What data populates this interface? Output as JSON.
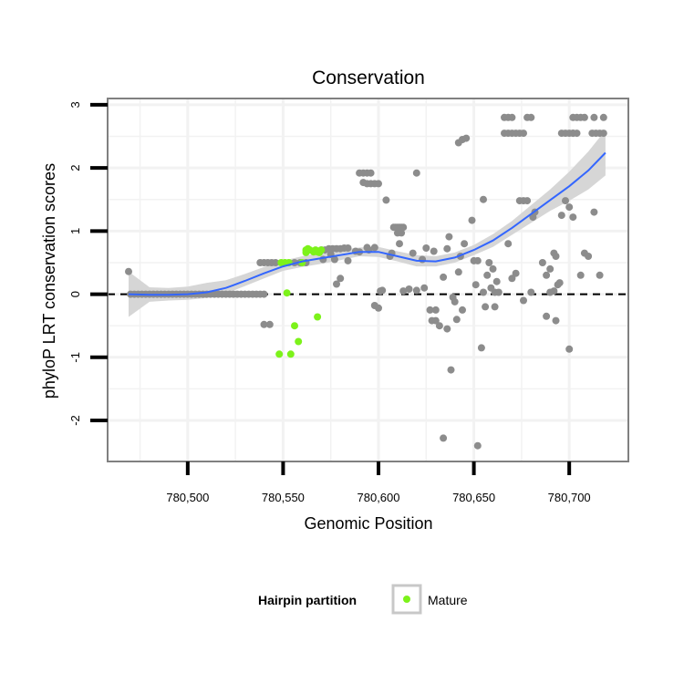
{
  "chart_data": {
    "type": "scatter",
    "title": "Conservation",
    "xlabel": "Genomic Position",
    "ylabel": "phyloP LRT conservation scores",
    "xlim": [
      780458,
      780731
    ],
    "ylim": [
      -2.65,
      3.1
    ],
    "x_ticks": [
      780500,
      780550,
      780600,
      780650,
      780700
    ],
    "x_tick_labels": [
      "780,500",
      "780,550",
      "780,600",
      "780,650",
      "780,700"
    ],
    "y_ticks": [
      -2,
      -1,
      0,
      1,
      2,
      3
    ],
    "y_tick_labels": [
      "-2",
      "-1",
      "0",
      "1",
      "2",
      "3"
    ],
    "grid": true,
    "reference_line": {
      "y": 0,
      "style": "dashed"
    },
    "legend": {
      "title": "Hairpin partition",
      "position": "bottom",
      "entries": [
        {
          "label": "Mature",
          "color": "#7cf21a"
        }
      ]
    },
    "colors": {
      "other": "#8c8c8c",
      "mature": "#7cf21a",
      "smooth": "#3366ff",
      "band": "#d4d4d4",
      "panel_border": "#808080",
      "grid": "#f2f2f2"
    },
    "series": [
      {
        "name": "",
        "color": "#8c8c8c",
        "points": [
          [
            780469,
            0.36
          ],
          [
            780470,
            0
          ],
          [
            780472,
            0
          ],
          [
            780474,
            0
          ],
          [
            780476,
            0
          ],
          [
            780478,
            0
          ],
          [
            780480,
            0
          ],
          [
            780482,
            0
          ],
          [
            780484,
            0
          ],
          [
            780486,
            0
          ],
          [
            780488,
            0
          ],
          [
            780490,
            0
          ],
          [
            780492,
            0
          ],
          [
            780494,
            0
          ],
          [
            780496,
            0
          ],
          [
            780498,
            0
          ],
          [
            780500,
            0
          ],
          [
            780502,
            0
          ],
          [
            780504,
            0
          ],
          [
            780506,
            0
          ],
          [
            780508,
            0
          ],
          [
            780510,
            0
          ],
          [
            780512,
            0
          ],
          [
            780514,
            0
          ],
          [
            780516,
            0
          ],
          [
            780518,
            0
          ],
          [
            780520,
            0
          ],
          [
            780522,
            0
          ],
          [
            780524,
            0
          ],
          [
            780526,
            0
          ],
          [
            780528,
            0
          ],
          [
            780530,
            0
          ],
          [
            780532,
            0
          ],
          [
            780534,
            0
          ],
          [
            780536,
            0
          ],
          [
            780538,
            0
          ],
          [
            780540,
            0
          ],
          [
            780538,
            0.5
          ],
          [
            780540,
            0.5
          ],
          [
            780542,
            0.5
          ],
          [
            780544,
            0.5
          ],
          [
            780546,
            0.5
          ],
          [
            780540,
            -0.48
          ],
          [
            780543,
            -0.48
          ],
          [
            780556,
            0.5
          ],
          [
            780559,
            0.5
          ],
          [
            780562,
            0.5
          ],
          [
            780570,
            0.7
          ],
          [
            780572,
            0.7
          ],
          [
            780574,
            0.72
          ],
          [
            780576,
            0.72
          ],
          [
            780578,
            0.72
          ],
          [
            780580,
            0.72
          ],
          [
            780582,
            0.73
          ],
          [
            780584,
            0.73
          ],
          [
            780571,
            0.55
          ],
          [
            780575,
            0.63
          ],
          [
            780577,
            0.55
          ],
          [
            780580,
            0.25
          ],
          [
            780578,
            0.16
          ],
          [
            780584,
            0.53
          ],
          [
            780590,
            1.92
          ],
          [
            780592,
            1.92
          ],
          [
            780594,
            1.92
          ],
          [
            780596,
            1.92
          ],
          [
            780592,
            1.77
          ],
          [
            780594,
            1.75
          ],
          [
            780596,
            1.75
          ],
          [
            780598,
            1.75
          ],
          [
            780600,
            1.75
          ],
          [
            780588,
            0.68
          ],
          [
            780590,
            0.67
          ],
          [
            780594,
            0.74
          ],
          [
            780595,
            0.7
          ],
          [
            780598,
            0.74
          ],
          [
            780598,
            -0.18
          ],
          [
            780600,
            -0.22
          ],
          [
            780601,
            0.05
          ],
          [
            780602,
            0.06
          ],
          [
            780604,
            1.49
          ],
          [
            780606,
            0.6
          ],
          [
            780607,
            0.65
          ],
          [
            780608,
            1.06
          ],
          [
            780609,
            1.06
          ],
          [
            780610,
            1.06
          ],
          [
            780611,
            1.06
          ],
          [
            780612,
            1.06
          ],
          [
            780613,
            1.06
          ],
          [
            780610,
            0.97
          ],
          [
            780612,
            0.97
          ],
          [
            780611,
            0.8
          ],
          [
            780613,
            0.05
          ],
          [
            780616,
            0.08
          ],
          [
            780618,
            0.65
          ],
          [
            780620,
            1.92
          ],
          [
            780620,
            0.06
          ],
          [
            780623,
            0.55
          ],
          [
            780625,
            0.73
          ],
          [
            780624,
            0.1
          ],
          [
            780627,
            -0.25
          ],
          [
            780628,
            -0.42
          ],
          [
            780629,
            0.68
          ],
          [
            780630,
            -0.25
          ],
          [
            780630,
            -0.42
          ],
          [
            780632,
            -0.5
          ],
          [
            780634,
            0.27
          ],
          [
            780634,
            -2.28
          ],
          [
            780636,
            0.72
          ],
          [
            780636,
            -0.55
          ],
          [
            780637,
            0.91
          ],
          [
            780638,
            -1.2
          ],
          [
            780639,
            -0.05
          ],
          [
            780640,
            -0.12
          ],
          [
            780641,
            -0.4
          ],
          [
            780642,
            0.35
          ],
          [
            780642,
            2.4
          ],
          [
            780644,
            2.45
          ],
          [
            780646,
            2.47
          ],
          [
            780643,
            0.6
          ],
          [
            780644,
            -0.25
          ],
          [
            780645,
            0.8
          ],
          [
            780649,
            1.17
          ],
          [
            780650,
            0.53
          ],
          [
            780651,
            0.15
          ],
          [
            780652,
            0.53
          ],
          [
            780652,
            -2.4
          ],
          [
            780654,
            -0.85
          ],
          [
            780655,
            1.5
          ],
          [
            780655,
            0.03
          ],
          [
            780656,
            -0.2
          ],
          [
            780657,
            0.3
          ],
          [
            780658,
            0.5
          ],
          [
            780659,
            0.1
          ],
          [
            780660,
            0.4
          ],
          [
            780661,
            0.03
          ],
          [
            780661,
            -0.2
          ],
          [
            780662,
            0.2
          ],
          [
            780663,
            0.03
          ],
          [
            780666,
            2.8
          ],
          [
            780668,
            2.8
          ],
          [
            780670,
            2.8
          ],
          [
            780666,
            2.55
          ],
          [
            780668,
            2.55
          ],
          [
            780670,
            2.55
          ],
          [
            780672,
            2.55
          ],
          [
            780674,
            2.55
          ],
          [
            780676,
            2.55
          ],
          [
            780668,
            0.8
          ],
          [
            780670,
            0.25
          ],
          [
            780672,
            0.33
          ],
          [
            780674,
            1.48
          ],
          [
            780676,
            1.48
          ],
          [
            780678,
            1.48
          ],
          [
            780676,
            -0.1
          ],
          [
            780678,
            2.8
          ],
          [
            780680,
            2.8
          ],
          [
            780680,
            0.03
          ],
          [
            780681,
            1.22
          ],
          [
            780682,
            1.3
          ],
          [
            780686,
            0.5
          ],
          [
            780688,
            -0.35
          ],
          [
            780688,
            0.3
          ],
          [
            780690,
            0.4
          ],
          [
            780690,
            0.03
          ],
          [
            780692,
            0.05
          ],
          [
            780692,
            0.65
          ],
          [
            780693,
            0.6
          ],
          [
            780693,
            -0.42
          ],
          [
            780694,
            0.15
          ],
          [
            780695,
            0.18
          ],
          [
            780696,
            2.55
          ],
          [
            780698,
            2.55
          ],
          [
            780700,
            2.55
          ],
          [
            780702,
            2.55
          ],
          [
            780704,
            2.55
          ],
          [
            780696,
            1.25
          ],
          [
            780698,
            1.48
          ],
          [
            780700,
            1.38
          ],
          [
            780700,
            -0.87
          ],
          [
            780702,
            2.55
          ],
          [
            780702,
            1.22
          ],
          [
            780702,
            2.8
          ],
          [
            780704,
            2.8
          ],
          [
            780706,
            2.8
          ],
          [
            780708,
            2.8
          ],
          [
            780706,
            0.3
          ],
          [
            780708,
            0.65
          ],
          [
            780710,
            0.6
          ],
          [
            780712,
            2.55
          ],
          [
            780714,
            2.55
          ],
          [
            780716,
            2.55
          ],
          [
            780718,
            2.55
          ],
          [
            780713,
            2.8
          ],
          [
            780713,
            1.3
          ],
          [
            780716,
            0.3
          ],
          [
            780718,
            2.8
          ]
        ]
      },
      {
        "name": "Mature",
        "color": "#7cf21a",
        "points": [
          [
            780548,
            -0.95
          ],
          [
            780549,
            0.5
          ],
          [
            780551,
            0.5
          ],
          [
            780552,
            0.02
          ],
          [
            780553,
            0.5
          ],
          [
            780554,
            -0.95
          ],
          [
            780556,
            -0.5
          ],
          [
            780558,
            -0.75
          ],
          [
            780560,
            0.5
          ],
          [
            780562,
            0.7
          ],
          [
            780562,
            0.66
          ],
          [
            780563,
            0.72
          ],
          [
            780564,
            0.7
          ],
          [
            780566,
            0.67
          ],
          [
            780567,
            0.7
          ],
          [
            780568,
            0.67
          ],
          [
            780568,
            -0.36
          ],
          [
            780569,
            0.66
          ],
          [
            780570,
            0.7
          ]
        ]
      }
    ],
    "smooth": {
      "name": "",
      "color": "#3366ff",
      "x": [
        780469,
        780480,
        780490,
        780500,
        780510,
        780520,
        780530,
        780540,
        780550,
        780560,
        780570,
        780580,
        780590,
        780600,
        780610,
        780620,
        780630,
        780640,
        780650,
        780660,
        780670,
        780680,
        780690,
        780700,
        780710,
        780719
      ],
      "y": [
        0.0,
        -0.01,
        -0.01,
        0.0,
        0.03,
        0.1,
        0.21,
        0.33,
        0.44,
        0.52,
        0.57,
        0.62,
        0.67,
        0.67,
        0.6,
        0.53,
        0.52,
        0.58,
        0.7,
        0.85,
        1.05,
        1.27,
        1.49,
        1.71,
        1.96,
        2.24
      ],
      "lower": [
        -0.36,
        -0.12,
        -0.1,
        -0.09,
        -0.06,
        0.01,
        0.13,
        0.25,
        0.37,
        0.43,
        0.48,
        0.54,
        0.6,
        0.59,
        0.52,
        0.44,
        0.44,
        0.5,
        0.62,
        0.75,
        0.94,
        1.13,
        1.32,
        1.48,
        1.66,
        1.88
      ],
      "upper": [
        0.36,
        0.11,
        0.1,
        0.12,
        0.18,
        0.22,
        0.32,
        0.43,
        0.53,
        0.6,
        0.66,
        0.7,
        0.74,
        0.75,
        0.68,
        0.62,
        0.6,
        0.66,
        0.78,
        0.95,
        1.16,
        1.41,
        1.66,
        1.94,
        2.26,
        2.6
      ]
    }
  }
}
